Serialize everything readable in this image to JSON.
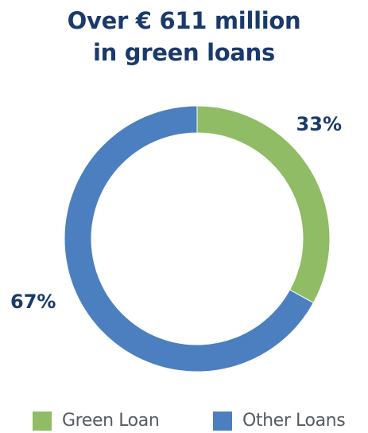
{
  "chart_data": {
    "type": "pie",
    "title": "Over € 611 million in green loans",
    "title_lines": [
      "Over € 611 million",
      "in green loans"
    ],
    "donut": true,
    "slices": [
      {
        "name": "Green Loan",
        "value": 33,
        "label": "33%",
        "color": "#8fbc64"
      },
      {
        "name": "Other Loans",
        "value": 67,
        "label": "67%",
        "color": "#4b7fbf"
      }
    ],
    "legend": {
      "position": "bottom",
      "items": [
        "Green Loan",
        "Other Loans"
      ]
    }
  }
}
